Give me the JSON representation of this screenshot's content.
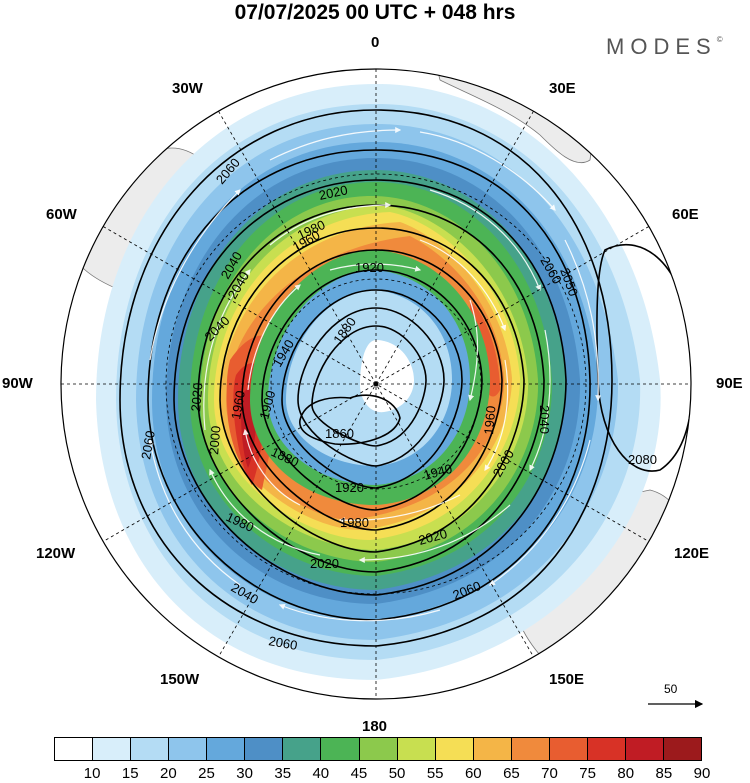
{
  "title": "07/07/2025  00 UTC  + 048 hrs",
  "brand": "MODES",
  "brand_mark": "©",
  "longitude_labels": {
    "top": "0",
    "top_right": "30E",
    "upper_right": "60E",
    "right": "90E",
    "lower_right": "120E",
    "bottom_right": "150E",
    "bottom": "180",
    "bottom_left": "150W",
    "lower_left": "120W",
    "left": "90W",
    "upper_left": "60W",
    "top_left": "30W"
  },
  "reference_vector": {
    "label": "50"
  },
  "colorbar": {
    "tick_labels": [
      "10",
      "15",
      "20",
      "25",
      "30",
      "35",
      "40",
      "45",
      "50",
      "55",
      "60",
      "65",
      "70",
      "75",
      "80",
      "85",
      "90"
    ],
    "colors": [
      "#ffffff",
      "#d8eefa",
      "#b4dcf4",
      "#8ec5ec",
      "#64a8dc",
      "#4e8fc6",
      "#46a28a",
      "#4cb455",
      "#8cc94c",
      "#c8df50",
      "#f5de55",
      "#f4b547",
      "#f08a3c",
      "#e85d30",
      "#d83226",
      "#c01c24",
      "#9c1a1c"
    ]
  },
  "contour_labels": [
    "2060",
    "2060",
    "2060",
    "2060",
    "2060",
    "2040",
    "2040",
    "2040",
    "2040",
    "2040",
    "2020",
    "2020",
    "2020",
    "2020",
    "2000",
    "2000",
    "1980",
    "1980",
    "1980",
    "1960",
    "1960",
    "1960",
    "1940",
    "1940",
    "1920",
    "1920",
    "1900",
    "1880",
    "1880",
    "1860",
    "2080",
    "2050"
  ],
  "map": {
    "projection": "polar stereographic",
    "hemisphere": "southern",
    "shading_field": "wind speed",
    "contour_field": "geopotential height"
  }
}
